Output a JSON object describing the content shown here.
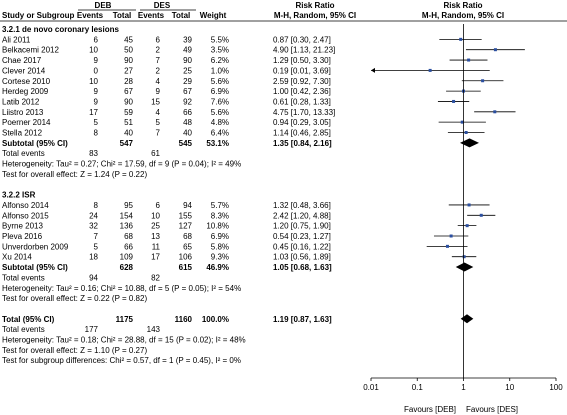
{
  "header": {
    "group_deb": "DEB",
    "group_des": "DES",
    "rr_title_left": "Risk Ratio",
    "rr_title_right": "Risk Ratio",
    "col_study": "Study or Subgroup",
    "col_events_deb": "Events",
    "col_total_deb": "Total",
    "col_events_des": "Events",
    "col_total_des": "Total",
    "col_weight": "Weight",
    "col_method_left": "M-H, Random, 95% CI",
    "col_method_right": "M-H, Random, 95% CI"
  },
  "axis": {
    "scale": "log",
    "range": [
      0.01,
      100
    ],
    "ticks": [
      {
        "value": 0.01,
        "label": "0.01"
      },
      {
        "value": 0.1,
        "label": "0.1"
      },
      {
        "value": 1,
        "label": "1"
      },
      {
        "value": 10,
        "label": "10"
      },
      {
        "value": 100,
        "label": "100"
      }
    ],
    "favours_left": "Favours [DEB]",
    "favours_right": "Favours [DES]"
  },
  "chart_data": {
    "type": "forest",
    "measure": "Risk Ratio (M-H, Random, 95% CI)",
    "subgroups": [
      {
        "title": "3.2.1 de novo coronary lesions",
        "studies": [
          {
            "name": "Ali 2011",
            "deb_events": "6",
            "deb_total": "45",
            "des_events": "6",
            "des_total": "39",
            "weight": "5.5%",
            "ci_text": "0.87 [0.30, 2.47]",
            "rr": 0.87,
            "lo": 0.3,
            "hi": 2.47
          },
          {
            "name": "Belkacemi 2012",
            "deb_events": "10",
            "deb_total": "50",
            "des_events": "2",
            "des_total": "49",
            "weight": "3.5%",
            "ci_text": "4.90 [1.13, 21.23]",
            "rr": 4.9,
            "lo": 1.13,
            "hi": 21.23
          },
          {
            "name": "Chae 2017",
            "deb_events": "9",
            "deb_total": "90",
            "des_events": "7",
            "des_total": "90",
            "weight": "6.2%",
            "ci_text": "1.29 [0.50, 3.30]",
            "rr": 1.29,
            "lo": 0.5,
            "hi": 3.3
          },
          {
            "name": "Clever 2014",
            "deb_events": "0",
            "deb_total": "27",
            "des_events": "2",
            "des_total": "25",
            "weight": "1.0%",
            "ci_text": "0.19 [0.01, 3.69]",
            "rr": 0.19,
            "lo": 0.01,
            "hi": 3.69
          },
          {
            "name": "Cortese 2010",
            "deb_events": "10",
            "deb_total": "28",
            "des_events": "4",
            "des_total": "29",
            "weight": "5.6%",
            "ci_text": "2.59 [0.92, 7.30]",
            "rr": 2.59,
            "lo": 0.92,
            "hi": 7.3
          },
          {
            "name": "Herdeg 2009",
            "deb_events": "9",
            "deb_total": "67",
            "des_events": "9",
            "des_total": "67",
            "weight": "6.9%",
            "ci_text": "1.00 [0.42, 2.36]",
            "rr": 1.0,
            "lo": 0.42,
            "hi": 2.36
          },
          {
            "name": "Latib 2012",
            "deb_events": "9",
            "deb_total": "90",
            "des_events": "15",
            "des_total": "92",
            "weight": "7.6%",
            "ci_text": "0.61 [0.28, 1.33]",
            "rr": 0.61,
            "lo": 0.28,
            "hi": 1.33
          },
          {
            "name": "Liistro 2013",
            "deb_events": "17",
            "deb_total": "59",
            "des_events": "4",
            "des_total": "66",
            "weight": "5.6%",
            "ci_text": "4.75 [1.70, 13.33]",
            "rr": 4.75,
            "lo": 1.7,
            "hi": 13.33
          },
          {
            "name": "Poerner 2014",
            "deb_events": "5",
            "deb_total": "51",
            "des_events": "5",
            "des_total": "48",
            "weight": "4.8%",
            "ci_text": "0.94 [0.29, 3.05]",
            "rr": 0.94,
            "lo": 0.29,
            "hi": 3.05
          },
          {
            "name": "Stella 2012",
            "deb_events": "8",
            "deb_total": "40",
            "des_events": "7",
            "des_total": "40",
            "weight": "6.4%",
            "ci_text": "1.14 [0.46, 2.85]",
            "rr": 1.14,
            "lo": 0.46,
            "hi": 2.85
          }
        ],
        "subtotal": {
          "label": "Subtotal (95% CI)",
          "deb_total": "547",
          "des_total": "545",
          "weight": "53.1%",
          "ci_text": "1.35 [0.84, 2.16]",
          "rr": 1.35,
          "lo": 0.84,
          "hi": 2.16
        },
        "total_events": {
          "label": "Total events",
          "deb": "83",
          "des": "61"
        },
        "heterogeneity": "Heterogeneity: Tau² = 0.27; Chi² = 17.59, df = 9 (P = 0.04); I² = 49%",
        "overall_effect": "Test for overall effect: Z = 1.24 (P = 0.22)"
      },
      {
        "title": "3.2.2 ISR",
        "studies": [
          {
            "name": "Alfonso 2014",
            "deb_events": "8",
            "deb_total": "95",
            "des_events": "6",
            "des_total": "94",
            "weight": "5.7%",
            "ci_text": "1.32 [0.48, 3.66]",
            "rr": 1.32,
            "lo": 0.48,
            "hi": 3.66
          },
          {
            "name": "Alfonso 2015",
            "deb_events": "24",
            "deb_total": "154",
            "des_events": "10",
            "des_total": "155",
            "weight": "8.3%",
            "ci_text": "2.42 [1.20, 4.88]",
            "rr": 2.42,
            "lo": 1.2,
            "hi": 4.88
          },
          {
            "name": "Byrne 2013",
            "deb_events": "32",
            "deb_total": "136",
            "des_events": "25",
            "des_total": "127",
            "weight": "10.8%",
            "ci_text": "1.20 [0.75, 1.90]",
            "rr": 1.2,
            "lo": 0.75,
            "hi": 1.9
          },
          {
            "name": "Pleva 2016",
            "deb_events": "7",
            "deb_total": "68",
            "des_events": "13",
            "des_total": "68",
            "weight": "6.9%",
            "ci_text": "0.54 [0.23, 1.27]",
            "rr": 0.54,
            "lo": 0.23,
            "hi": 1.27
          },
          {
            "name": "Unverdorben 2009",
            "deb_events": "5",
            "deb_total": "66",
            "des_events": "11",
            "des_total": "65",
            "weight": "5.8%",
            "ci_text": "0.45 [0.16, 1.22]",
            "rr": 0.45,
            "lo": 0.16,
            "hi": 1.22
          },
          {
            "name": "Xu 2014",
            "deb_events": "18",
            "deb_total": "109",
            "des_events": "17",
            "des_total": "106",
            "weight": "9.3%",
            "ci_text": "1.03 [0.56, 1.89]",
            "rr": 1.03,
            "lo": 0.56,
            "hi": 1.89
          }
        ],
        "subtotal": {
          "label": "Subtotal (95% CI)",
          "deb_total": "628",
          "des_total": "615",
          "weight": "46.9%",
          "ci_text": "1.05 [0.68, 1.63]",
          "rr": 1.05,
          "lo": 0.68,
          "hi": 1.63
        },
        "total_events": {
          "label": "Total events",
          "deb": "94",
          "des": "82"
        },
        "heterogeneity": "Heterogeneity: Tau² = 0.16; Chi² = 10.88, df = 5 (P = 0.05); I² = 54%",
        "overall_effect": "Test for overall effect: Z = 0.22 (P = 0.82)"
      }
    ],
    "overall": {
      "label": "Total (95% CI)",
      "deb_total": "1175",
      "des_total": "1160",
      "weight": "100.0%",
      "ci_text": "1.19 [0.87, 1.63]",
      "rr": 1.19,
      "lo": 0.87,
      "hi": 1.63,
      "total_events": {
        "label": "Total events",
        "deb": "177",
        "des": "143"
      },
      "heterogeneity": "Heterogeneity: Tau² = 0.18; Chi² = 28.88, df = 15 (P = 0.02); I² = 48%",
      "overall_effect": "Test for overall effect: Z = 1.10 (P = 0.27)",
      "subgroup_diff": "Test for subgroup differences: Chi² = 0.57, df = 1 (P = 0.45), I² = 0%"
    }
  },
  "colors": {
    "marker": "#2b4fa0",
    "diamond": "#000000",
    "text": "#000000",
    "line": "#000000"
  }
}
